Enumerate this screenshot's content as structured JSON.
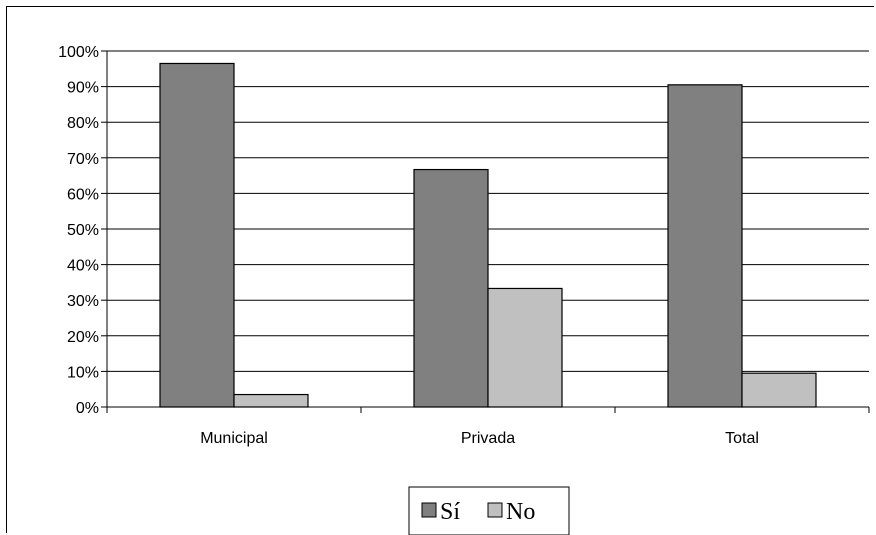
{
  "chart_data": {
    "type": "bar",
    "categories": [
      "Municipal",
      "Privada",
      "Total"
    ],
    "series": [
      {
        "name": "Sí",
        "values": [
          96.5,
          66.7,
          90.5
        ],
        "color": "#808080"
      },
      {
        "name": "No",
        "values": [
          3.5,
          33.3,
          9.5
        ],
        "color": "#c0c0c0"
      }
    ],
    "title": "",
    "xlabel": "",
    "ylabel": "",
    "ylim": [
      0,
      100
    ],
    "yticks": [
      "0%",
      "10%",
      "20%",
      "30%",
      "40%",
      "50%",
      "60%",
      "70%",
      "80%",
      "90%",
      "100%"
    ],
    "grid": true,
    "legend": "bottom-center"
  }
}
